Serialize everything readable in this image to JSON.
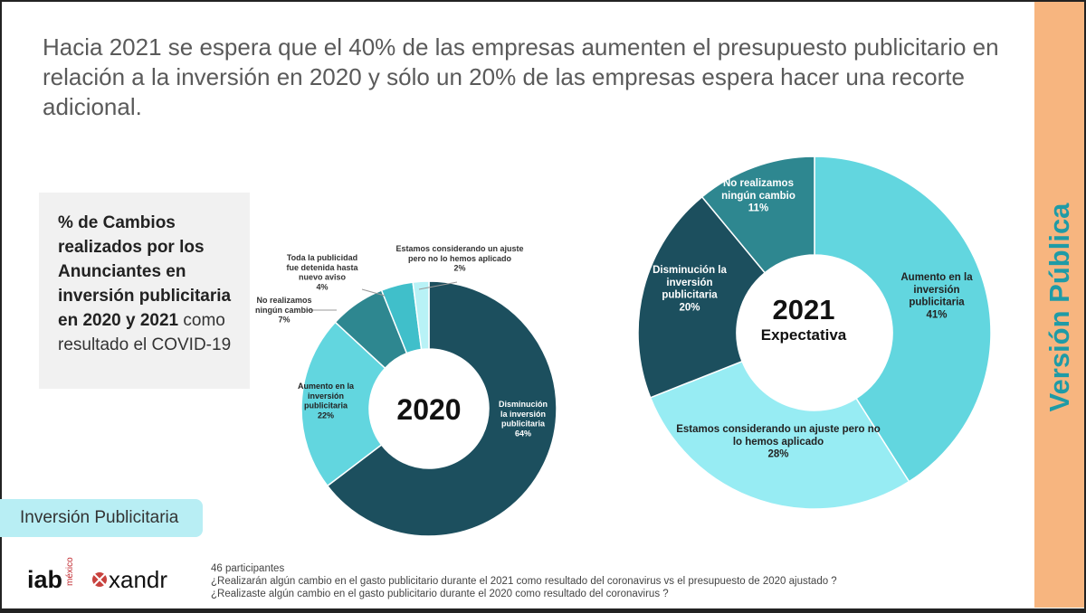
{
  "title": "Hacia 2021 se espera que el 40% de las empresas aumenten el presupuesto publicitario en relación a la inversión en 2020 y sólo un 20% de las empresas espera hacer una recorte adicional.",
  "side_label": "Versión Pública",
  "legend_box": {
    "bold": "% de Cambios realizados por los Anunciantes en inversión publicitaria en 2020 y 2021",
    "normal": " como resultado el COVID-19"
  },
  "section_tag": "Inversión  Publicitaria",
  "footer": {
    "participants": "46 participantes",
    "q1": "¿Realizarán algún cambio en el gasto publicitario durante el 2021 como resultado del coronavirus vs el presupuesto de 2020 ajustado ?",
    "q2": "¿Realizaste algún cambio en el gasto publicitario durante el 2020 como resultado del coronavirus ?"
  },
  "logos": {
    "iab": "iab",
    "iab_sub": "méxico",
    "xandr": "xandr"
  },
  "colors": {
    "accent_orange": "#f7b57f",
    "accent_teal": "#1f9ba6"
  },
  "chart_data": [
    {
      "type": "pie",
      "title": "2020",
      "donut": true,
      "slices": [
        {
          "label": "Disminución la inversión publicitaria",
          "value": 64,
          "display": "64%",
          "color": "#1c4f5e"
        },
        {
          "label": "Aumento en la inversión publicitaria",
          "value": 22,
          "display": "22%",
          "color": "#62d6df"
        },
        {
          "label": "No realizamos ningún cambio",
          "value": 7,
          "display": "7%",
          "color": "#2e8790"
        },
        {
          "label": "Toda la publicidad fue detenida hasta nuevo aviso",
          "value": 4,
          "display": "4%",
          "color": "#40bfca"
        },
        {
          "label": "Estamos considerando un ajuste pero no lo hemos aplicado",
          "value": 2,
          "display": "2%",
          "color": "#b8f2f6"
        }
      ]
    },
    {
      "type": "pie",
      "title": "2021",
      "subtitle": "Expectativa",
      "donut": true,
      "slices": [
        {
          "label": "Aumento en la inversión publicitaria",
          "value": 41,
          "display": "41%",
          "color": "#62d6df"
        },
        {
          "label": "Estamos considerando un ajuste pero no lo hemos aplicado",
          "value": 28,
          "display": "28%",
          "color": "#97ecf3"
        },
        {
          "label": "Disminución  la inversión publicitaria",
          "value": 20,
          "display": "20%",
          "color": "#1c4f5e"
        },
        {
          "label": "No realizamos ningún cambio",
          "value": 11,
          "display": "11%",
          "color": "#2e8790"
        }
      ]
    }
  ]
}
